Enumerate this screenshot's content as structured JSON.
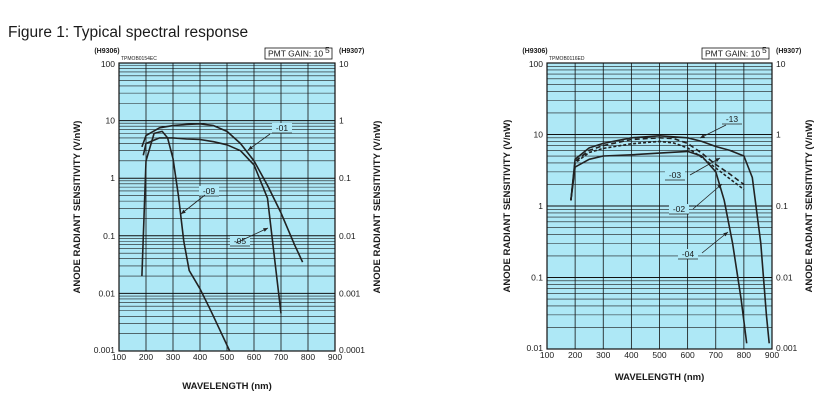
{
  "figure_title": "Figure 1: Typical spectral response",
  "chart_data": [
    {
      "type": "line",
      "code": "TPMOB0154EC",
      "left_axis_tag": "(H9306)",
      "right_axis_tag": "(H9307)",
      "gain_label": "PMT GAIN: 10",
      "gain_exp": "5",
      "xlabel": "WAVELENGTH (nm)",
      "ylabel": "ANODE RADIANT SENSITIVITY (V/nW)",
      "xlim": [
        100,
        900
      ],
      "xticks": [
        "100",
        "200",
        "300",
        "400",
        "500",
        "600",
        "700",
        "800",
        "900"
      ],
      "ylim": [
        0.001,
        100
      ],
      "yscale": "log",
      "yticks_left": [
        "100",
        "10",
        "1",
        "0.1",
        "0.01",
        "0.001"
      ],
      "yticks_right": [
        "10",
        "1",
        "0.1",
        "0.01",
        "0.001",
        "0.0001"
      ],
      "grid": true,
      "series": [
        {
          "name": "-01",
          "x": [
            185,
            200,
            250,
            300,
            350,
            400,
            450,
            500,
            550,
            600,
            650,
            700,
            750,
            780
          ],
          "y": [
            3.5,
            5.5,
            7.5,
            8.2,
            8.6,
            8.8,
            8.2,
            6.5,
            4.0,
            2.0,
            0.75,
            0.25,
            0.07,
            0.035
          ]
        },
        {
          "name": "-05",
          "x": [
            190,
            200,
            250,
            300,
            350,
            400,
            450,
            500,
            550,
            600,
            650,
            700
          ],
          "y": [
            2.5,
            4.0,
            5.0,
            5.0,
            4.8,
            4.7,
            4.3,
            3.8,
            3.0,
            1.7,
            0.45,
            0.0045
          ]
        },
        {
          "name": "-09",
          "x": [
            185,
            200,
            230,
            260,
            280,
            300,
            320,
            340,
            360,
            400,
            440,
            480,
            510
          ],
          "y": [
            0.02,
            2.0,
            6.0,
            6.5,
            5.0,
            2.2,
            0.5,
            0.08,
            0.025,
            0.012,
            0.005,
            0.002,
            0.001
          ]
        }
      ]
    },
    {
      "type": "line",
      "code": "TPMOB0116ED",
      "left_axis_tag": "(H9306)",
      "right_axis_tag": "(H9307)",
      "gain_label": "PMT GAIN: 10",
      "gain_exp": "5",
      "xlabel": "WAVELENGTH (nm)",
      "ylabel": "ANODE RADIANT SENSITIVITY (V/nW)",
      "xlim": [
        100,
        900
      ],
      "xticks": [
        "100",
        "200",
        "300",
        "400",
        "500",
        "600",
        "700",
        "800",
        "900"
      ],
      "ylim": [
        0.01,
        100
      ],
      "yscale": "log",
      "yticks_left": [
        "100",
        "10",
        "1",
        "0.1",
        "0.01"
      ],
      "yticks_right": [
        "10",
        "1",
        "0.1",
        "0.01",
        "0.001"
      ],
      "grid": true,
      "series": [
        {
          "name": "-13",
          "x": [
            185,
            200,
            250,
            300,
            400,
            500,
            600,
            650,
            700,
            750,
            800,
            830,
            860,
            880,
            890
          ],
          "y": [
            1.2,
            4.5,
            6.5,
            7.5,
            9.0,
            9.6,
            9.0,
            8.0,
            6.8,
            6.0,
            5.0,
            2.5,
            0.3,
            0.03,
            0.012
          ]
        },
        {
          "name": "-03",
          "x": [
            185,
            200,
            250,
            300,
            400,
            500,
            550,
            600,
            650,
            700,
            750,
            800
          ],
          "y": [
            1.2,
            4.2,
            6.0,
            7.0,
            8.5,
            9.0,
            8.8,
            7.5,
            5.5,
            3.8,
            2.8,
            2.0
          ]
        },
        {
          "name": "-02",
          "x": [
            185,
            200,
            250,
            300,
            400,
            500,
            550,
            600,
            650,
            700,
            750,
            800
          ],
          "y": [
            1.2,
            4.0,
            5.6,
            6.4,
            7.4,
            8.0,
            7.6,
            6.5,
            4.8,
            3.4,
            2.4,
            1.7
          ]
        },
        {
          "name": "-04",
          "x": [
            185,
            200,
            250,
            300,
            400,
            500,
            600,
            650,
            700,
            730,
            760,
            790,
            810
          ],
          "y": [
            1.2,
            3.5,
            4.5,
            5.0,
            5.2,
            5.5,
            5.8,
            5.0,
            3.0,
            1.2,
            0.3,
            0.05,
            0.012
          ]
        }
      ]
    }
  ]
}
